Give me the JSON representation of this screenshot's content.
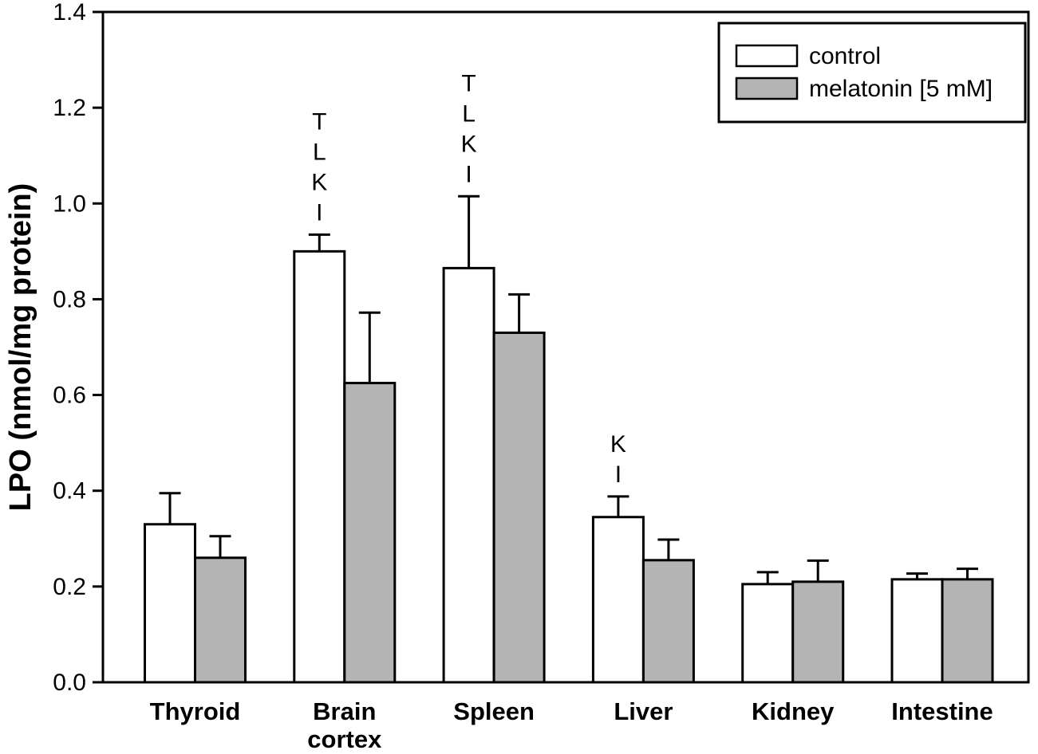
{
  "chart_data": {
    "type": "bar",
    "title": "",
    "xlabel": "",
    "ylabel": "LPO (nmol/mg protein)",
    "ylim": [
      0.0,
      1.4
    ],
    "ytick_labels": [
      "0.0",
      "0.2",
      "0.4",
      "0.6",
      "0.8",
      "1.0",
      "1.2",
      "1.4"
    ],
    "grid": false,
    "categories": [
      "Thyroid",
      "Brain\ncortex",
      "Spleen",
      "Liver",
      "Kidney",
      "Intestine"
    ],
    "series": [
      {
        "name": "control",
        "fill": "#ffffff",
        "values": [
          0.33,
          0.9,
          0.865,
          0.345,
          0.205,
          0.215
        ],
        "errors_plus": [
          0.065,
          0.035,
          0.15,
          0.043,
          0.025,
          0.012
        ]
      },
      {
        "name": "melatonin [5 mM]",
        "fill": "#b4b4b4",
        "values": [
          0.26,
          0.625,
          0.73,
          0.255,
          0.21,
          0.215
        ],
        "errors_plus": [
          0.045,
          0.147,
          0.08,
          0.043,
          0.044,
          0.022
        ]
      }
    ],
    "annotations": [
      {
        "category": "Brain cortex",
        "category_index": 1,
        "series": "control",
        "letters": [
          "T",
          "L",
          "K",
          "I"
        ]
      },
      {
        "category": "Spleen",
        "category_index": 2,
        "series": "control",
        "letters": [
          "T",
          "L",
          "K",
          "I"
        ]
      },
      {
        "category": "Liver",
        "category_index": 3,
        "series": "control",
        "letters": [
          "K",
          "I"
        ]
      }
    ],
    "legend": {
      "position": "top-right",
      "entries": [
        "control",
        "melatonin [5 mM]"
      ]
    },
    "axis_color": "#000000",
    "text_color": "#000000",
    "background_color": "#ffffff"
  }
}
